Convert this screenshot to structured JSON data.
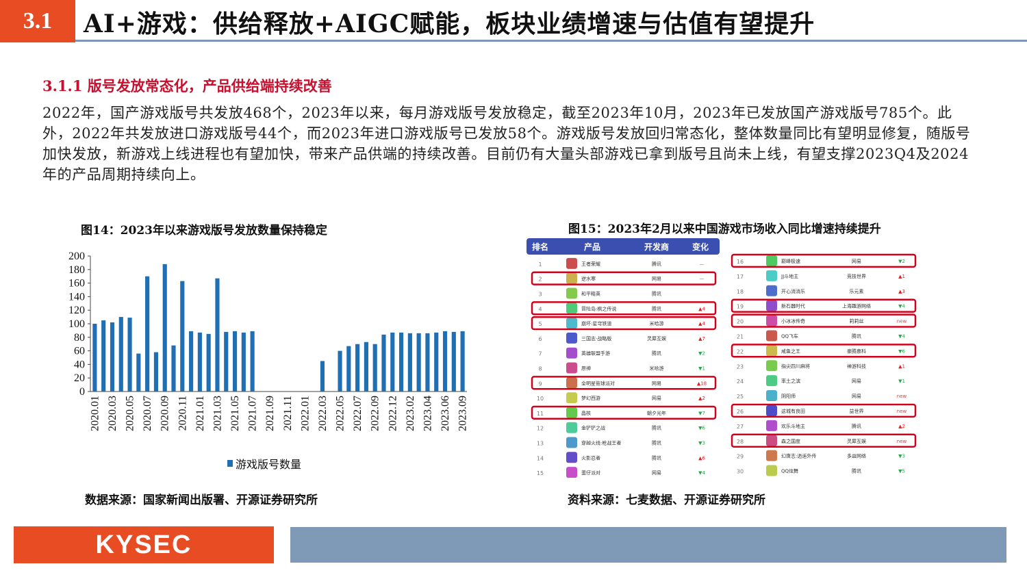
{
  "header": {
    "section_number": "3.1",
    "title": "AI+游戏：供给释放+AIGC赋能，板块业绩增速与估值有望提升"
  },
  "subheading": "3.1.1 版号发放常态化，产品供给端持续改善",
  "paragraph": "2022年，国产游戏版号共发放468个，2023年以来，每月游戏版号发放稳定，截至2023年10月，2023年已发放国产游戏版号785个。此外，2022年共发放进口游戏版号44个，而2023年进口游戏版号已发放58个。游戏版号发放回归常态化，整体数量同比有望明显修复，随版号加快发放，新游戏上线进程也有望加快，带来产品供端的持续改善。目前仍有大量头部游戏已拿到版号且尚未上线，有望支撑2023Q4及2024年的产品周期持续向上。",
  "figure14": {
    "caption": "图14：2023年以来游戏版号发放数量保持稳定",
    "source": "数据来源：国家新闻出版署、开源证券研究所"
  },
  "figure15": {
    "caption": "图15：2023年2月以来中国游戏市场收入同比增速持续提升",
    "source": "资料来源：七麦数据、开源证券研究所",
    "table_headers": [
      "排名",
      "产品",
      "开发商",
      "变化"
    ],
    "left_rows": [
      {
        "rank": "1",
        "name": "王者荣耀",
        "dev": "腾讯",
        "change": "—",
        "dir": "none",
        "hl": false
      },
      {
        "rank": "2",
        "name": "逆水寒",
        "dev": "网易",
        "change": "—",
        "dir": "none",
        "hl": true
      },
      {
        "rank": "3",
        "name": "和平精英",
        "dev": "腾讯",
        "change": "",
        "dir": "none",
        "hl": false
      },
      {
        "rank": "4",
        "name": "冒险岛:枫之传说",
        "dev": "腾讯",
        "change": "4",
        "dir": "up",
        "hl": true
      },
      {
        "rank": "5",
        "name": "崩坏:星穹铁道",
        "dev": "米哈游",
        "change": "4",
        "dir": "up",
        "hl": true
      },
      {
        "rank": "6",
        "name": "三国志·战略版",
        "dev": "灵犀互娱",
        "change": "7",
        "dir": "up",
        "hl": false
      },
      {
        "rank": "7",
        "name": "英雄联盟手游",
        "dev": "腾讯",
        "change": "2",
        "dir": "down",
        "hl": false
      },
      {
        "rank": "8",
        "name": "原神",
        "dev": "米哈游",
        "change": "1",
        "dir": "down",
        "hl": false
      },
      {
        "rank": "9",
        "name": "全明星街球派对",
        "dev": "网易",
        "change": "18",
        "dir": "up",
        "hl": true
      },
      {
        "rank": "10",
        "name": "梦幻西游",
        "dev": "网易",
        "change": "2",
        "dir": "up",
        "hl": false
      },
      {
        "rank": "11",
        "name": "晶核",
        "dev": "朝夕光年",
        "change": "7",
        "dir": "down",
        "hl": true
      },
      {
        "rank": "12",
        "name": "金铲铲之战",
        "dev": "腾讯",
        "change": "6",
        "dir": "down",
        "hl": false
      },
      {
        "rank": "13",
        "name": "穿越火线:枪战王者",
        "dev": "腾讯",
        "change": "3",
        "dir": "down",
        "hl": false
      },
      {
        "rank": "14",
        "name": "火影忍者",
        "dev": "腾讯",
        "change": "6",
        "dir": "up",
        "hl": false
      },
      {
        "rank": "15",
        "name": "蛋仔派对",
        "dev": "网易",
        "change": "4",
        "dir": "down",
        "hl": false
      }
    ],
    "right_rows": [
      {
        "rank": "16",
        "name": "巅峰极速",
        "dev": "网易",
        "change": "2",
        "dir": "down",
        "hl": true
      },
      {
        "rank": "17",
        "name": "JJ斗地主",
        "dev": "竞技世界",
        "change": "1",
        "dir": "up",
        "hl": false
      },
      {
        "rank": "18",
        "name": "开心消消乐",
        "dev": "乐元素",
        "change": "3",
        "dir": "up",
        "hl": false
      },
      {
        "rank": "19",
        "name": "新石器时代",
        "dev": "上海趣游网络",
        "change": "4",
        "dir": "down",
        "hl": true
      },
      {
        "rank": "20",
        "name": "小冰冰传奇",
        "dev": "莉莉丝",
        "change": "new",
        "dir": "new",
        "hl": true
      },
      {
        "rank": "21",
        "name": "QQ飞车",
        "dev": "腾讯",
        "change": "4",
        "dir": "down",
        "hl": false
      },
      {
        "rank": "22",
        "name": "咸鱼之王",
        "dev": "豪腾嘉科",
        "change": "6",
        "dir": "down",
        "hl": true
      },
      {
        "rank": "23",
        "name": "指尖四川麻将",
        "dev": "禅游科技",
        "change": "1",
        "dir": "up",
        "hl": false
      },
      {
        "rank": "24",
        "name": "率土之滨",
        "dev": "网易",
        "change": "1",
        "dir": "down",
        "hl": false
      },
      {
        "rank": "25",
        "name": "阴阳师",
        "dev": "网易",
        "change": "new",
        "dir": "new",
        "hl": false
      },
      {
        "rank": "26",
        "name": "这城有良田",
        "dev": "益世界",
        "change": "new",
        "dir": "new",
        "hl": true
      },
      {
        "rank": "27",
        "name": "欢乐斗地主",
        "dev": "腾讯",
        "change": "2",
        "dir": "up",
        "hl": false
      },
      {
        "rank": "28",
        "name": "森之国度",
        "dev": "灵犀互娱",
        "change": "new",
        "dir": "new",
        "hl": true
      },
      {
        "rank": "29",
        "name": "幻唐志:逍遥外传",
        "dev": "多益网络",
        "change": "3",
        "dir": "down",
        "hl": false
      },
      {
        "rank": "30",
        "name": "QQ炫舞",
        "dev": "腾讯",
        "change": "5",
        "dir": "down",
        "hl": false
      }
    ]
  },
  "colors": {
    "accent": "#e84c22",
    "bar": "#1f6fb2",
    "highlight": "#d0021b",
    "footer_bar": "#7f9ab6",
    "subheading": "#c8102e"
  },
  "footer": {
    "logo_text": "KYSEC"
  },
  "chart_data": {
    "type": "bar",
    "title": "",
    "xlabel": "",
    "ylabel": "",
    "ylim": [
      0,
      200
    ],
    "yticks": [
      0,
      20,
      40,
      60,
      80,
      100,
      120,
      140,
      160,
      180,
      200
    ],
    "x_tick_labels": [
      "2020.01",
      "2020.03",
      "2020.05",
      "2020.07",
      "2020.09",
      "2020.11",
      "2021.01",
      "2021.03",
      "2021.05",
      "2021.07",
      "2021.09",
      "2021.11",
      "2022.01",
      "2022.03",
      "2022.05",
      "2022.07",
      "2022.09",
      "2022.12",
      "2023.02",
      "2023.04",
      "2023.06",
      "2023.09"
    ],
    "categories": [
      "2020.01",
      "2020.02",
      "2020.03",
      "2020.04",
      "2020.05",
      "2020.06",
      "2020.07",
      "2020.08",
      "2020.09",
      "2020.10",
      "2020.11",
      "2020.12",
      "2021.01",
      "2021.02",
      "2021.03",
      "2021.04",
      "2021.05",
      "2021.06",
      "2021.07",
      "2021.08",
      "2021.09",
      "2021.10",
      "2021.11",
      "2021.12",
      "2022.01",
      "2022.02",
      "2022.03",
      "2022.04",
      "2022.05",
      "2022.06",
      "2022.07",
      "2022.08",
      "2022.09",
      "2022.10",
      "2022.12",
      "2023.01",
      "2023.02",
      "2023.03",
      "2023.04",
      "2023.05",
      "2023.06",
      "2023.07",
      "2023.09"
    ],
    "series": [
      {
        "name": "游戏版号数量",
        "values": [
          100,
          105,
          102,
          110,
          109,
          56,
          170,
          58,
          188,
          68,
          163,
          89,
          87,
          85,
          167,
          88,
          89,
          87,
          89,
          0,
          0,
          0,
          0,
          0,
          0,
          0,
          45,
          0,
          60,
          67,
          70,
          73,
          70,
          84,
          87,
          87,
          86,
          86,
          86,
          87,
          89,
          88,
          89
        ]
      }
    ],
    "legend": "bottom-center",
    "grid": false
  }
}
